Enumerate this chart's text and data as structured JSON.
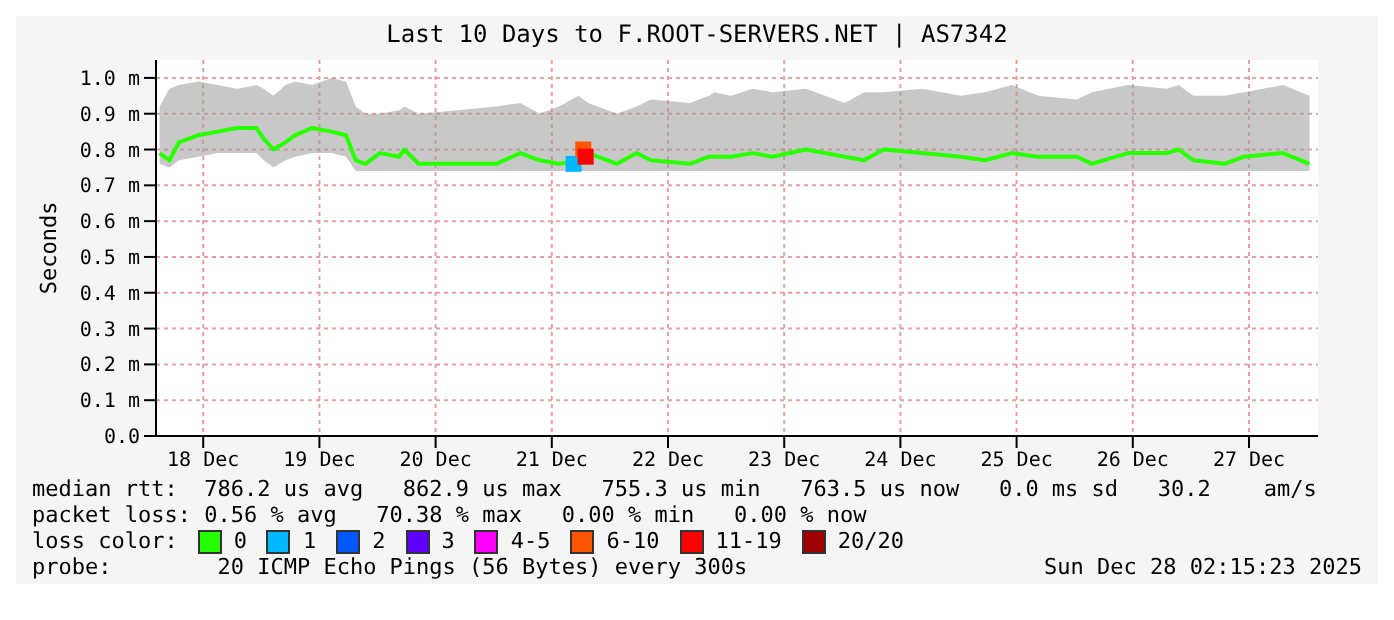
{
  "chart_data": {
    "type": "line",
    "title": "Last 10 Days to F.ROOT-SERVERS.NET | AS7342",
    "ylabel": "Seconds",
    "legend_title": "loss color:",
    "legend": "bottom",
    "grid": true,
    "xlim": [
      "2025-12-18T02:15",
      "2025-12-28T02:15"
    ],
    "xticks": [
      {
        "value": "2025-12-18T12:00",
        "label": "18 Dec"
      },
      {
        "value": "2025-12-19T12:00",
        "label": "19 Dec"
      },
      {
        "value": "2025-12-20T12:00",
        "label": "20 Dec"
      },
      {
        "value": "2025-12-21T12:00",
        "label": "21 Dec"
      },
      {
        "value": "2025-12-22T12:00",
        "label": "22 Dec"
      },
      {
        "value": "2025-12-23T12:00",
        "label": "23 Dec"
      },
      {
        "value": "2025-12-24T12:00",
        "label": "24 Dec"
      },
      {
        "value": "2025-12-25T12:00",
        "label": "25 Dec"
      },
      {
        "value": "2025-12-26T12:00",
        "label": "26 Dec"
      },
      {
        "value": "2025-12-27T12:00",
        "label": "27 Dec"
      }
    ],
    "ylim": [
      0,
      1.05
    ],
    "yticks": [
      {
        "value": 0,
        "label": "0.0"
      },
      {
        "value": 0.1,
        "label": "0.1 m"
      },
      {
        "value": 0.2,
        "label": "0.2 m"
      },
      {
        "value": 0.3,
        "label": "0.3 m"
      },
      {
        "value": 0.4,
        "label": "0.4 m"
      },
      {
        "value": 0.5,
        "label": "0.5 m"
      },
      {
        "value": 0.6,
        "label": "0.6 m"
      },
      {
        "value": 0.7,
        "label": "0.7 m"
      },
      {
        "value": 0.8,
        "label": "0.8 m"
      },
      {
        "value": 0.9,
        "label": "0.9 m"
      },
      {
        "value": 1.0,
        "label": "1.0 m"
      }
    ],
    "series": [
      {
        "name": "0",
        "color": "#26ff00",
        "x": [
          "2025-12-18T03:00",
          "2025-12-18T05:00",
          "2025-12-18T07:00",
          "2025-12-18T11:00",
          "2025-12-18T15:00",
          "2025-12-18T19:00",
          "2025-12-18T23:00",
          "2025-12-19T00:30",
          "2025-12-19T02:30",
          "2025-12-19T05:00",
          "2025-12-19T07:00",
          "2025-12-19T10:30",
          "2025-12-19T14:30",
          "2025-12-19T17:30",
          "2025-12-19T19:30",
          "2025-12-19T21:30",
          "2025-12-20T00:30",
          "2025-12-20T04:30",
          "2025-12-20T05:30",
          "2025-12-20T08:30",
          "2025-12-20T16:30",
          "2025-12-21T00:30",
          "2025-12-21T05:30",
          "2025-12-21T09:30",
          "2025-12-21T13:30",
          "2025-12-21T17:30",
          "2025-12-21T19:30",
          "2025-12-22T01:30",
          "2025-12-22T05:30",
          "2025-12-22T08:30",
          "2025-12-22T16:30",
          "2025-12-22T20:30",
          "2025-12-22T21:30",
          "2025-12-23T01:00",
          "2025-12-23T05:30",
          "2025-12-23T09:30",
          "2025-12-23T16:30",
          "2025-12-24T00:30",
          "2025-12-24T04:30",
          "2025-12-24T08:30",
          "2025-12-24T16:30",
          "2025-12-25T00:30",
          "2025-12-25T05:30",
          "2025-12-25T11:00",
          "2025-12-25T16:30",
          "2025-12-26T00:30",
          "2025-12-26T03:30",
          "2025-12-26T11:00",
          "2025-12-26T19:00",
          "2025-12-26T21:30",
          "2025-12-27T00:30",
          "2025-12-27T07:00",
          "2025-12-27T11:00",
          "2025-12-27T19:00",
          "2025-12-28T00:30"
        ],
        "values": [
          0.79,
          0.77,
          0.82,
          0.84,
          0.85,
          0.86,
          0.86,
          0.83,
          0.8,
          0.82,
          0.84,
          0.86,
          0.85,
          0.84,
          0.77,
          0.76,
          0.79,
          0.78,
          0.8,
          0.76,
          0.76,
          0.76,
          0.79,
          0.77,
          0.76,
          0.77,
          0.79,
          0.76,
          0.79,
          0.77,
          0.76,
          0.78,
          0.78,
          0.78,
          0.79,
          0.78,
          0.8,
          0.78,
          0.77,
          0.8,
          0.79,
          0.78,
          0.77,
          0.79,
          0.78,
          0.78,
          0.76,
          0.79,
          0.79,
          0.8,
          0.77,
          0.76,
          0.78,
          0.79,
          0.76
        ],
        "lower": [
          0.76,
          0.75,
          0.77,
          0.78,
          0.79,
          0.79,
          0.79,
          0.77,
          0.75,
          0.77,
          0.78,
          0.79,
          0.79,
          0.78,
          0.74,
          0.74,
          0.74,
          0.74,
          0.74,
          0.74,
          0.74,
          0.74,
          0.74,
          0.74,
          0.74,
          0.74,
          0.74,
          0.74,
          0.74,
          0.74,
          0.74,
          0.74,
          0.74,
          0.74,
          0.74,
          0.74,
          0.74,
          0.74,
          0.74,
          0.74,
          0.74,
          0.74,
          0.74,
          0.74,
          0.74,
          0.74,
          0.74,
          0.74,
          0.74,
          0.74,
          0.74,
          0.74,
          0.74,
          0.74,
          0.74
        ],
        "upper": [
          0.92,
          0.97,
          0.98,
          0.99,
          0.98,
          0.97,
          0.98,
          0.97,
          0.95,
          0.98,
          0.99,
          0.98,
          1.0,
          0.99,
          0.92,
          0.9,
          0.9,
          0.91,
          0.92,
          0.9,
          0.91,
          0.92,
          0.93,
          0.9,
          0.92,
          0.95,
          0.93,
          0.9,
          0.92,
          0.94,
          0.93,
          0.95,
          0.96,
          0.95,
          0.97,
          0.96,
          0.97,
          0.93,
          0.96,
          0.96,
          0.97,
          0.95,
          0.96,
          0.98,
          0.95,
          0.94,
          0.96,
          0.98,
          0.97,
          0.98,
          0.95,
          0.95,
          0.96,
          0.98,
          0.95
        ]
      },
      {
        "name": "1",
        "type": "scatter",
        "color": "#00b8ff",
        "x": [
          "2025-12-21T16:30"
        ],
        "values": [
          0.76
        ]
      },
      {
        "name": "2",
        "type": "scatter",
        "color": "#0059ff"
      },
      {
        "name": "3",
        "type": "scatter",
        "color": "#5e00ff"
      },
      {
        "name": "4-5",
        "type": "scatter",
        "color": "#ff00ff"
      },
      {
        "name": "6-10",
        "type": "scatter",
        "color": "#ff5500",
        "x": [
          "2025-12-21T18:30"
        ],
        "values": [
          0.8
        ]
      },
      {
        "name": "11-19",
        "type": "scatter",
        "color": "#ff0000",
        "x": [
          "2025-12-21T19:00"
        ],
        "values": [
          0.78
        ]
      },
      {
        "name": "20/20",
        "type": "scatter",
        "color": "#a10000"
      }
    ],
    "annotations": [
      "median rtt:  786.2 us avg   862.9 us max   755.3 us min   763.5 us now   0.0 ms sd   30.2    am/s",
      "packet loss: 0.56 % avg   70.38 % max   0.00 % min   0.00 % now",
      "probe:        20 ICMP Echo Pings (56 Bytes) every 300s",
      "Sun Dec 28 02:15:23 2025"
    ]
  }
}
